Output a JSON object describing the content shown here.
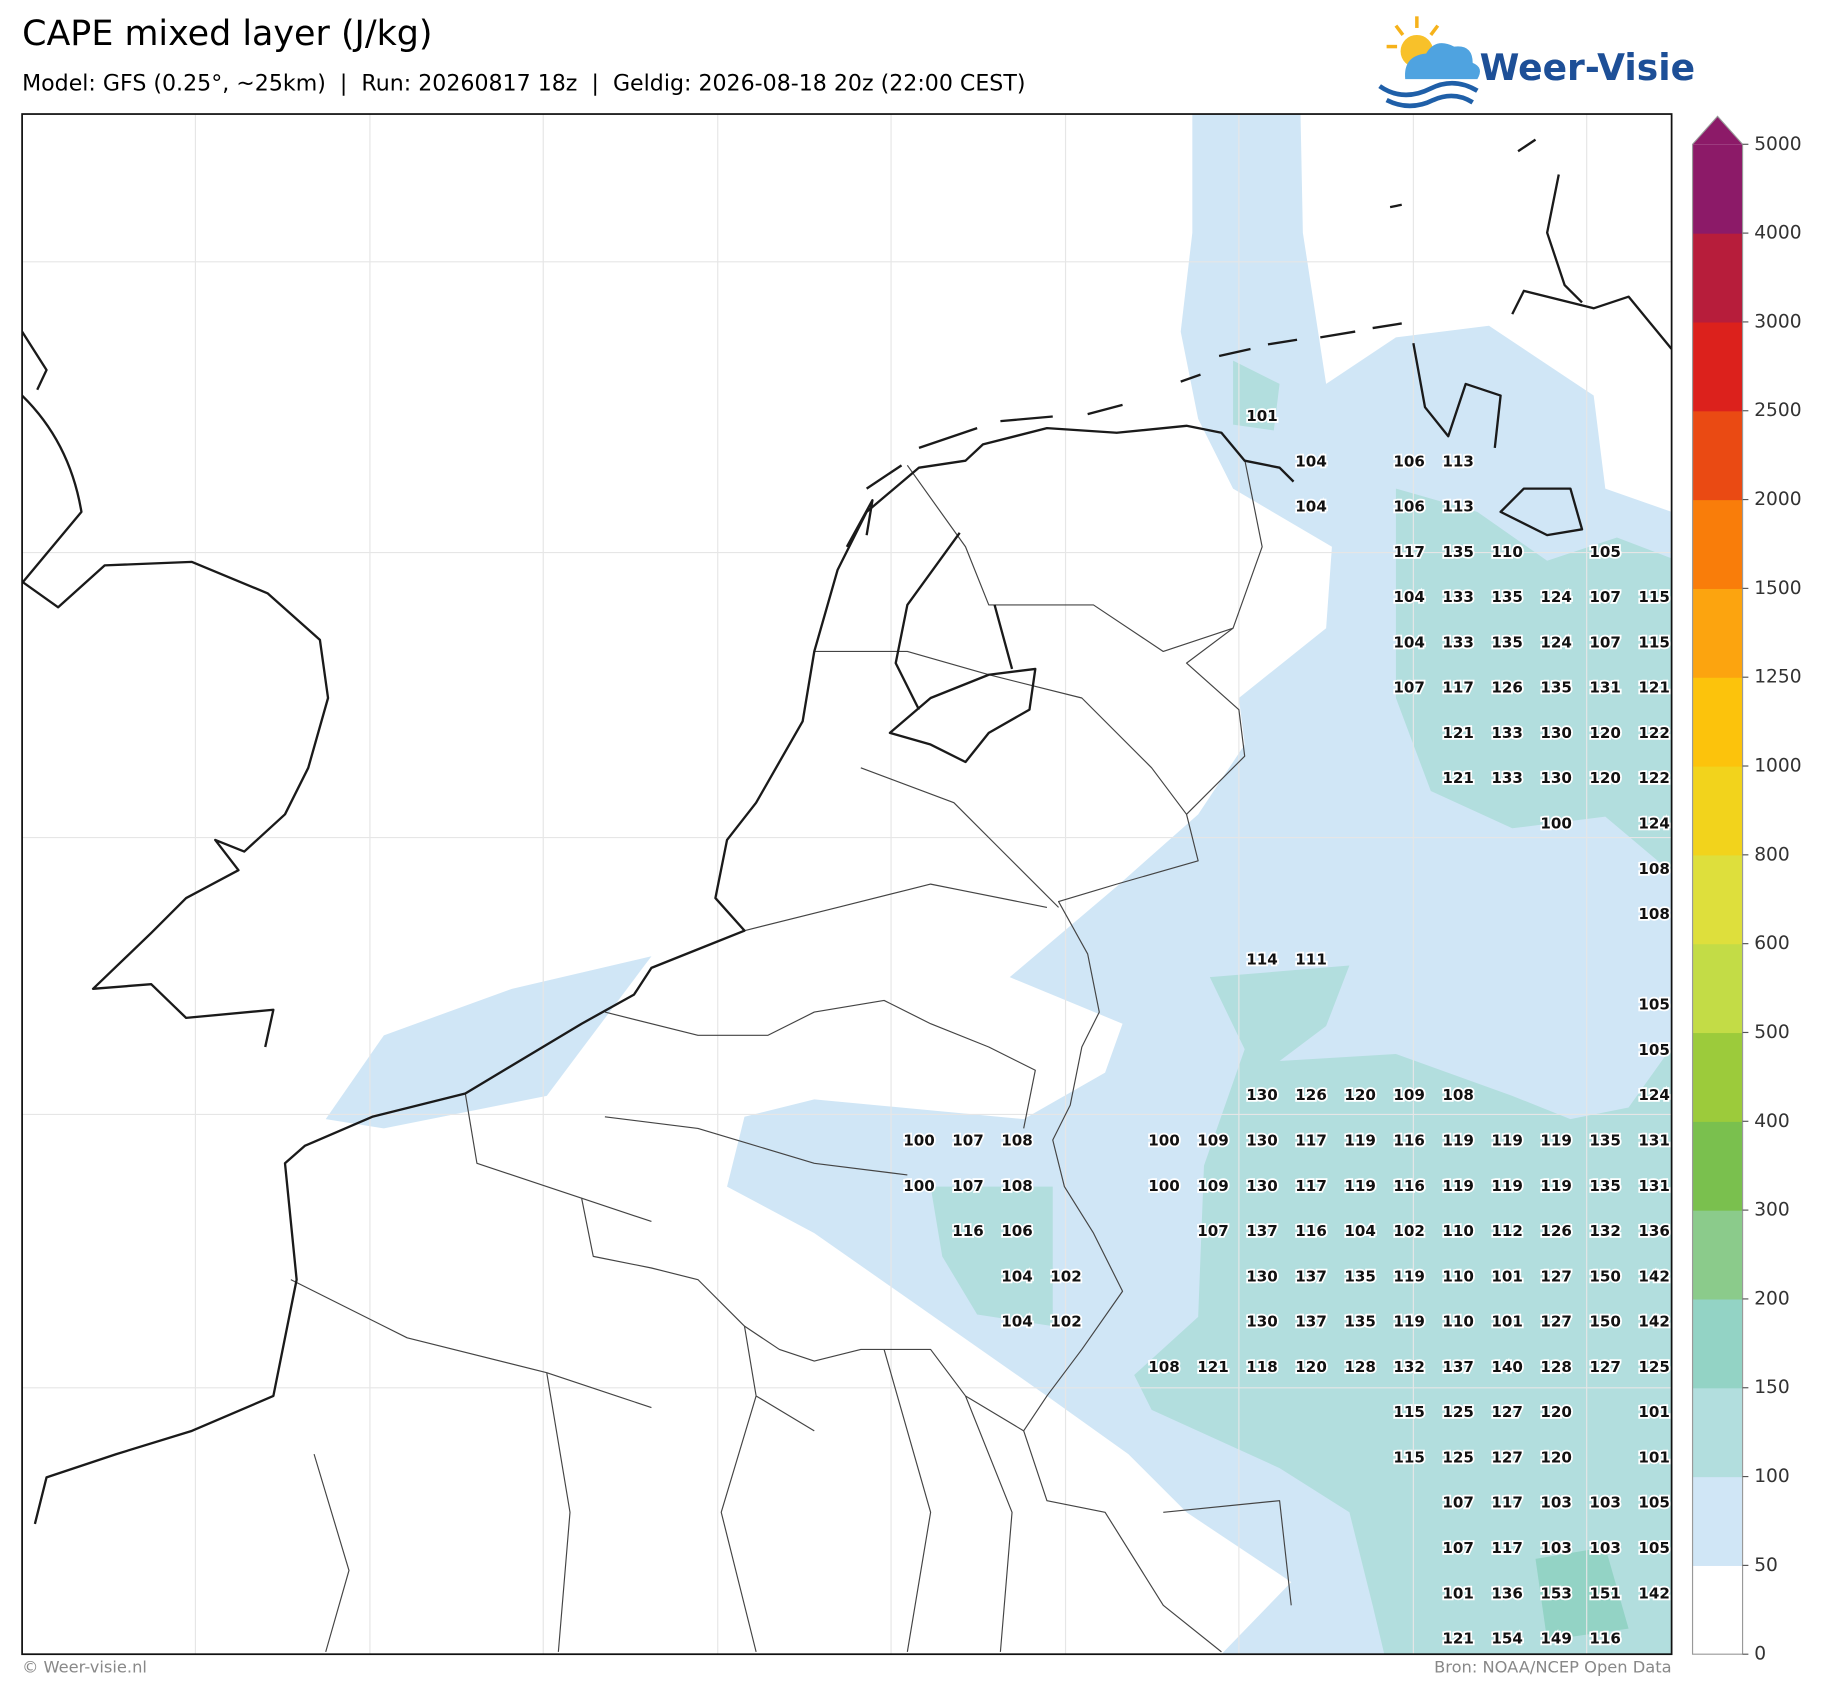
{
  "header": {
    "title": "CAPE mixed layer (J/kg)",
    "subtitle": "Model: GFS (0.25°, ~25km)  |  Run: 20260817 18z  |  Geldig: 2026-08-18 20z (22:00 CEST)",
    "logo": "Weer-Visie"
  },
  "colorbar": {
    "ticks": [
      0,
      50,
      100,
      150,
      200,
      300,
      400,
      500,
      600,
      800,
      1000,
      1250,
      1500,
      2000,
      2500,
      3000,
      4000,
      5000
    ],
    "colors": [
      "#ffffff",
      "#d0e6f6",
      "#b2dede",
      "#93d3c5",
      "#8bcb8b",
      "#7ac04e",
      "#9ccb3b",
      "#c3dc46",
      "#dedf3c",
      "#f2d31c",
      "#fcc30c",
      "#fca40f",
      "#f97d0a",
      "#ea4a13",
      "#dc211c",
      "#b71d3b",
      "#8c1a68"
    ]
  },
  "map_labels": {
    "rows": [
      [
        null,
        null,
        null,
        null,
        null,
        null,
        null,
        101,
        null,
        null,
        null,
        null,
        null,
        null,
        null,
        null
      ],
      [
        null,
        null,
        null,
        null,
        null,
        null,
        null,
        null,
        104,
        null,
        106,
        113,
        null,
        null,
        null,
        null
      ],
      [
        null,
        null,
        null,
        null,
        null,
        null,
        null,
        null,
        104,
        null,
        106,
        113,
        null,
        null,
        null,
        null
      ],
      [
        null,
        null,
        null,
        null,
        null,
        null,
        null,
        null,
        null,
        null,
        117,
        135,
        110,
        null,
        105,
        null
      ],
      [
        null,
        null,
        null,
        null,
        null,
        null,
        null,
        null,
        null,
        null,
        104,
        133,
        135,
        124,
        107,
        115
      ],
      [
        null,
        null,
        null,
        null,
        null,
        null,
        null,
        null,
        null,
        null,
        104,
        133,
        135,
        124,
        107,
        115
      ],
      [
        null,
        null,
        null,
        null,
        null,
        null,
        null,
        null,
        null,
        null,
        107,
        117,
        126,
        135,
        131,
        121
      ],
      [
        null,
        null,
        null,
        null,
        null,
        null,
        null,
        null,
        null,
        null,
        null,
        121,
        133,
        130,
        120,
        122
      ],
      [
        null,
        null,
        null,
        null,
        null,
        null,
        null,
        null,
        null,
        null,
        null,
        121,
        133,
        130,
        120,
        122
      ],
      [
        null,
        null,
        null,
        null,
        null,
        null,
        null,
        null,
        null,
        null,
        null,
        null,
        null,
        100,
        null,
        124
      ],
      [
        null,
        null,
        null,
        null,
        null,
        null,
        null,
        null,
        null,
        null,
        null,
        null,
        null,
        null,
        null,
        108
      ],
      [
        null,
        null,
        null,
        null,
        null,
        null,
        null,
        null,
        null,
        null,
        null,
        null,
        null,
        null,
        null,
        108
      ],
      [
        null,
        null,
        null,
        null,
        null,
        null,
        null,
        114,
        111,
        null,
        null,
        null,
        null,
        null,
        null,
        null
      ],
      [
        null,
        null,
        null,
        null,
        null,
        null,
        null,
        null,
        null,
        null,
        null,
        null,
        null,
        null,
        null,
        105
      ],
      [
        null,
        null,
        null,
        null,
        null,
        null,
        null,
        null,
        null,
        null,
        null,
        null,
        null,
        null,
        null,
        105
      ],
      [
        null,
        null,
        null,
        null,
        null,
        null,
        null,
        130,
        126,
        120,
        109,
        108,
        null,
        null,
        null,
        124
      ],
      [
        100,
        107,
        108,
        null,
        null,
        100,
        109,
        130,
        117,
        119,
        116,
        119,
        119,
        119,
        135,
        131
      ],
      [
        100,
        107,
        108,
        null,
        null,
        100,
        109,
        130,
        117,
        119,
        116,
        119,
        119,
        119,
        135,
        131
      ],
      [
        null,
        116,
        106,
        null,
        null,
        null,
        107,
        137,
        116,
        104,
        102,
        110,
        112,
        126,
        132,
        136
      ],
      [
        null,
        null,
        104,
        102,
        null,
        null,
        null,
        130,
        137,
        135,
        119,
        110,
        101,
        127,
        150,
        142
      ],
      [
        null,
        null,
        104,
        102,
        null,
        null,
        null,
        130,
        137,
        135,
        119,
        110,
        101,
        127,
        150,
        142
      ],
      [
        null,
        null,
        null,
        null,
        null,
        108,
        121,
        118,
        120,
        128,
        132,
        137,
        140,
        128,
        127,
        125
      ],
      [
        null,
        null,
        null,
        null,
        null,
        null,
        null,
        null,
        null,
        null,
        115,
        125,
        127,
        120,
        null,
        101
      ],
      [
        null,
        null,
        null,
        null,
        null,
        null,
        null,
        null,
        null,
        null,
        115,
        125,
        127,
        120,
        null,
        101
      ],
      [
        null,
        null,
        null,
        null,
        null,
        null,
        null,
        null,
        null,
        null,
        null,
        107,
        117,
        103,
        103,
        105
      ],
      [
        null,
        null,
        null,
        null,
        null,
        null,
        null,
        null,
        null,
        null,
        null,
        107,
        117,
        103,
        103,
        105
      ],
      [
        null,
        null,
        null,
        null,
        null,
        null,
        null,
        null,
        null,
        null,
        null,
        101,
        136,
        153,
        151,
        142
      ],
      [
        null,
        null,
        null,
        null,
        null,
        null,
        null,
        null,
        null,
        null,
        null,
        121,
        154,
        149,
        116,
        null
      ]
    ]
  },
  "footer": {
    "copyright": "© Weer-visie.nl",
    "source": "Bron: NOAA/NCEP Open Data"
  }
}
